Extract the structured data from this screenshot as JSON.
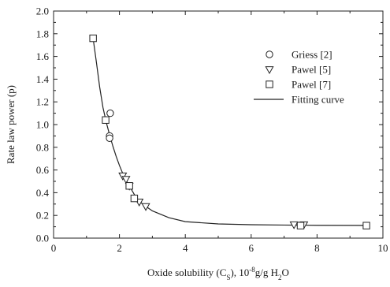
{
  "chart_data": {
    "type": "scatter",
    "xlabel": "Oxide solubility (Cs), 10-8g/g H2O",
    "xlabel_parts": {
      "prefix": "Oxide solubility (C",
      "sub_s": "S",
      "mid": "), 10",
      "sup": "-8",
      "unit": "g/g H",
      "sub_2": "2",
      "suffix": "O"
    },
    "ylabel": "Rate law power (p)",
    "xlim": [
      0,
      10
    ],
    "ylim": [
      0,
      2.0
    ],
    "x_ticks": [
      0,
      2,
      4,
      6,
      8,
      10
    ],
    "x_tick_labels": [
      "0",
      "2",
      "4",
      "6",
      "8",
      "10"
    ],
    "y_ticks": [
      0,
      0.2,
      0.4,
      0.6,
      0.8,
      1.0,
      1.2,
      1.4,
      1.6,
      1.8,
      2.0
    ],
    "y_tick_labels": [
      "0.0",
      "0.2",
      "0.4",
      "0.6",
      "0.8",
      "1.0",
      "1.2",
      "1.4",
      "1.6",
      "1.8",
      "2.0"
    ],
    "grid": false,
    "legend_position": "top-right",
    "series": [
      {
        "name": "Griess [2]",
        "marker": "circle",
        "points": [
          [
            1.72,
            1.1
          ],
          [
            1.7,
            0.9
          ],
          [
            1.7,
            0.88
          ]
        ]
      },
      {
        "name": "Pawel [5]",
        "marker": "triangle-down",
        "points": [
          [
            2.1,
            0.55
          ],
          [
            2.2,
            0.52
          ],
          [
            2.3,
            0.46
          ],
          [
            2.6,
            0.32
          ],
          [
            2.8,
            0.28
          ],
          [
            7.3,
            0.12
          ],
          [
            7.6,
            0.12
          ]
        ]
      },
      {
        "name": "Pawel [7]",
        "marker": "square",
        "points": [
          [
            1.2,
            1.76
          ],
          [
            1.58,
            1.04
          ],
          [
            2.3,
            0.46
          ],
          [
            2.45,
            0.35
          ],
          [
            7.5,
            0.11
          ],
          [
            9.5,
            0.11
          ]
        ]
      },
      {
        "name": "Fitting curve",
        "marker": "line",
        "points": [
          [
            1.2,
            1.76
          ],
          [
            1.3,
            1.55
          ],
          [
            1.4,
            1.33
          ],
          [
            1.5,
            1.15
          ],
          [
            1.6,
            1.02
          ],
          [
            1.7,
            0.91
          ],
          [
            1.8,
            0.81
          ],
          [
            1.9,
            0.72
          ],
          [
            2.0,
            0.64
          ],
          [
            2.1,
            0.57
          ],
          [
            2.2,
            0.51
          ],
          [
            2.3,
            0.46
          ],
          [
            2.4,
            0.41
          ],
          [
            2.5,
            0.36
          ],
          [
            2.7,
            0.3
          ],
          [
            3.0,
            0.24
          ],
          [
            3.5,
            0.18
          ],
          [
            4.0,
            0.145
          ],
          [
            5.0,
            0.125
          ],
          [
            6.0,
            0.118
          ],
          [
            7.0,
            0.115
          ],
          [
            8.0,
            0.113
          ],
          [
            9.5,
            0.112
          ]
        ]
      }
    ]
  }
}
